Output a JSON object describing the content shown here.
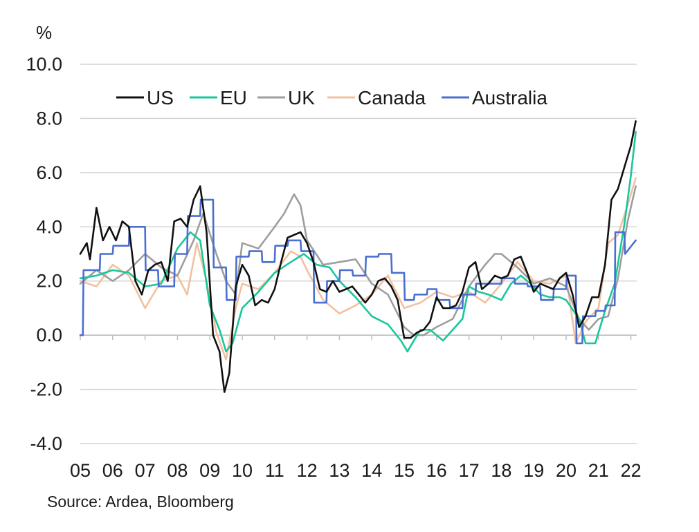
{
  "chart_data": {
    "type": "line",
    "title": "",
    "ylabel": "%",
    "xlabel": "",
    "source": "Source: Ardea, Bloomberg",
    "ylim": [
      -4.0,
      10.0
    ],
    "xlim": [
      2005.0,
      2022.2
    ],
    "yticks": [
      "10.0",
      "8.0",
      "6.0",
      "4.0",
      "2.0",
      "0.0",
      "-2.0",
      "-4.0"
    ],
    "ytick_values": [
      10,
      8,
      6,
      4,
      2,
      0,
      -2,
      -4
    ],
    "xticks": [
      "05",
      "06",
      "07",
      "08",
      "09",
      "10",
      "11",
      "12",
      "13",
      "14",
      "15",
      "16",
      "17",
      "18",
      "19",
      "20",
      "21",
      "22"
    ],
    "grid": true,
    "legend_position": "top",
    "series": [
      {
        "name": "US",
        "color": "#111111",
        "x": [
          2005.0,
          2005.2,
          2005.3,
          2005.5,
          2005.7,
          2005.9,
          2006.1,
          2006.3,
          2006.5,
          2006.7,
          2006.9,
          2007.1,
          2007.3,
          2007.5,
          2007.7,
          2007.9,
          2008.1,
          2008.3,
          2008.5,
          2008.7,
          2008.9,
          2009.1,
          2009.3,
          2009.45,
          2009.6,
          2009.8,
          2010.0,
          2010.2,
          2010.4,
          2010.6,
          2010.8,
          2011.0,
          2011.2,
          2011.4,
          2011.6,
          2011.8,
          2012.0,
          2012.2,
          2012.4,
          2012.6,
          2012.8,
          2013.0,
          2013.2,
          2013.4,
          2013.6,
          2013.8,
          2014.0,
          2014.2,
          2014.4,
          2014.6,
          2014.8,
          2015.0,
          2015.2,
          2015.4,
          2015.6,
          2015.8,
          2016.0,
          2016.2,
          2016.4,
          2016.6,
          2016.8,
          2017.0,
          2017.2,
          2017.4,
          2017.6,
          2017.8,
          2018.0,
          2018.2,
          2018.4,
          2018.6,
          2018.8,
          2019.0,
          2019.2,
          2019.4,
          2019.6,
          2019.8,
          2020.0,
          2020.2,
          2020.4,
          2020.6,
          2020.8,
          2021.0,
          2021.2,
          2021.4,
          2021.6,
          2021.8,
          2022.0,
          2022.15
        ],
        "values": [
          3.0,
          3.4,
          2.8,
          4.7,
          3.5,
          4.0,
          3.5,
          4.2,
          4.0,
          2.0,
          1.5,
          2.4,
          2.6,
          2.7,
          2.0,
          4.2,
          4.3,
          4.0,
          5.0,
          5.5,
          3.8,
          0.0,
          -0.6,
          -2.1,
          -1.4,
          1.8,
          2.6,
          2.2,
          1.1,
          1.3,
          1.2,
          1.7,
          2.7,
          3.6,
          3.7,
          3.8,
          3.4,
          2.7,
          1.7,
          1.6,
          2.0,
          1.6,
          1.7,
          1.8,
          1.5,
          1.2,
          1.5,
          2.0,
          2.1,
          1.8,
          1.3,
          -0.1,
          -0.1,
          0.1,
          0.2,
          0.5,
          1.4,
          1.0,
          1.0,
          1.1,
          1.6,
          2.5,
          2.7,
          1.7,
          1.9,
          2.2,
          2.1,
          2.2,
          2.8,
          2.9,
          2.3,
          1.6,
          1.9,
          1.8,
          1.7,
          2.1,
          2.3,
          1.5,
          0.3,
          0.7,
          1.4,
          1.4,
          2.6,
          5.0,
          5.4,
          6.2,
          7.0,
          7.9
        ]
      },
      {
        "name": "EU",
        "color": "#19c79b",
        "x": [
          2005.0,
          2005.5,
          2006.0,
          2006.5,
          2007.0,
          2007.5,
          2008.0,
          2008.4,
          2008.7,
          2009.0,
          2009.3,
          2009.5,
          2009.7,
          2010.0,
          2010.5,
          2011.0,
          2011.5,
          2011.9,
          2012.3,
          2012.7,
          2013.0,
          2013.5,
          2014.0,
          2014.5,
          2014.9,
          2015.1,
          2015.5,
          2015.8,
          2016.2,
          2016.5,
          2016.8,
          2017.0,
          2017.3,
          2017.6,
          2018.0,
          2018.3,
          2018.6,
          2018.9,
          2019.2,
          2019.5,
          2019.8,
          2020.0,
          2020.4,
          2020.6,
          2020.9,
          2021.2,
          2021.5,
          2021.8,
          2022.0,
          2022.15
        ],
        "values": [
          2.1,
          2.2,
          2.4,
          2.3,
          1.8,
          1.9,
          3.2,
          3.8,
          3.5,
          1.1,
          0.2,
          -0.6,
          -0.3,
          1.0,
          1.6,
          2.3,
          2.7,
          3.0,
          2.6,
          2.5,
          2.0,
          1.4,
          0.7,
          0.4,
          -0.2,
          -0.6,
          0.2,
          0.2,
          -0.2,
          0.2,
          0.6,
          1.8,
          1.6,
          1.5,
          1.3,
          1.9,
          2.2,
          1.9,
          1.5,
          1.4,
          1.4,
          1.3,
          0.6,
          -0.3,
          -0.3,
          0.9,
          1.9,
          4.1,
          5.9,
          7.5
        ]
      },
      {
        "name": "UK",
        "color": "#9e9e9e",
        "x": [
          2005.0,
          2005.5,
          2006.0,
          2006.5,
          2007.0,
          2007.5,
          2008.0,
          2008.5,
          2008.8,
          2009.2,
          2009.5,
          2009.8,
          2010.0,
          2010.5,
          2011.0,
          2011.3,
          2011.6,
          2011.8,
          2012.0,
          2012.5,
          2013.0,
          2013.5,
          2014.0,
          2014.5,
          2015.0,
          2015.3,
          2015.6,
          2016.0,
          2016.5,
          2017.0,
          2017.5,
          2017.8,
          2018.0,
          2018.5,
          2019.0,
          2019.5,
          2020.0,
          2020.4,
          2020.7,
          2021.0,
          2021.3,
          2021.6,
          2021.9,
          2022.15
        ],
        "values": [
          1.9,
          2.4,
          2.0,
          2.4,
          3.0,
          2.5,
          2.2,
          3.5,
          4.5,
          3.0,
          2.0,
          1.5,
          3.4,
          3.2,
          4.0,
          4.5,
          5.2,
          4.8,
          3.5,
          2.6,
          2.7,
          2.8,
          1.9,
          1.5,
          0.3,
          0.0,
          0.0,
          0.3,
          0.6,
          1.8,
          2.6,
          3.0,
          3.0,
          2.5,
          1.9,
          2.1,
          1.8,
          0.6,
          0.2,
          0.6,
          0.7,
          2.1,
          4.2,
          5.5
        ]
      },
      {
        "name": "Canada",
        "color": "#f2c0a0",
        "x": [
          2005.0,
          2005.5,
          2006.0,
          2006.5,
          2007.0,
          2007.5,
          2008.0,
          2008.3,
          2008.6,
          2008.9,
          2009.2,
          2009.5,
          2009.8,
          2010.0,
          2010.5,
          2011.0,
          2011.5,
          2011.8,
          2012.0,
          2012.5,
          2013.0,
          2013.5,
          2014.0,
          2014.5,
          2015.0,
          2015.5,
          2016.0,
          2016.5,
          2017.0,
          2017.5,
          2018.0,
          2018.5,
          2019.0,
          2019.5,
          2020.0,
          2020.3,
          2020.6,
          2021.0,
          2021.3,
          2021.6,
          2021.9,
          2022.15
        ],
        "values": [
          2.0,
          1.8,
          2.6,
          2.2,
          1.0,
          2.0,
          2.2,
          1.5,
          3.4,
          2.0,
          0.1,
          -0.9,
          1.0,
          1.9,
          1.7,
          2.3,
          3.1,
          2.9,
          2.4,
          1.3,
          0.8,
          1.1,
          1.5,
          2.2,
          1.0,
          1.2,
          1.6,
          1.4,
          1.6,
          1.2,
          1.9,
          2.7,
          2.0,
          1.9,
          2.2,
          -0.3,
          0.5,
          1.0,
          3.4,
          3.7,
          4.8,
          5.8
        ]
      },
      {
        "name": "Australia",
        "color": "#4a6fd0",
        "x": [
          2005.0,
          2005.08,
          2005.1,
          2005.6,
          2005.62,
          2006.0,
          2006.02,
          2006.5,
          2006.52,
          2007.0,
          2007.02,
          2007.4,
          2007.42,
          2007.9,
          2007.92,
          2008.3,
          2008.32,
          2008.7,
          2008.72,
          2009.1,
          2009.12,
          2009.5,
          2009.52,
          2009.8,
          2009.82,
          2010.2,
          2010.22,
          2010.6,
          2010.62,
          2011.0,
          2011.02,
          2011.4,
          2011.42,
          2011.8,
          2011.82,
          2012.2,
          2012.22,
          2012.6,
          2012.62,
          2013.0,
          2013.02,
          2013.4,
          2013.42,
          2013.8,
          2013.82,
          2014.2,
          2014.22,
          2014.6,
          2014.62,
          2015.0,
          2015.02,
          2015.3,
          2015.32,
          2015.7,
          2015.72,
          2016.0,
          2016.02,
          2016.4,
          2016.42,
          2016.8,
          2016.82,
          2017.2,
          2017.22,
          2017.6,
          2017.62,
          2018.0,
          2018.02,
          2018.4,
          2018.42,
          2018.8,
          2018.82,
          2019.2,
          2019.22,
          2019.6,
          2019.62,
          2020.0,
          2020.02,
          2020.3,
          2020.32,
          2020.5,
          2020.52,
          2020.9,
          2020.92,
          2021.2,
          2021.22,
          2021.5,
          2021.52,
          2021.8,
          2021.82,
          2022.15
        ],
        "values": [
          0.0,
          0.0,
          2.4,
          2.4,
          3.0,
          3.0,
          3.3,
          3.3,
          4.0,
          4.0,
          2.4,
          2.4,
          1.8,
          1.8,
          3.0,
          3.0,
          4.4,
          4.4,
          5.0,
          5.0,
          2.5,
          2.5,
          1.3,
          1.3,
          2.9,
          2.9,
          3.1,
          3.1,
          2.7,
          2.7,
          3.3,
          3.3,
          3.5,
          3.5,
          3.1,
          3.1,
          1.2,
          1.2,
          2.0,
          2.0,
          2.4,
          2.4,
          2.2,
          2.2,
          2.9,
          2.9,
          3.0,
          3.0,
          2.3,
          2.3,
          1.3,
          1.3,
          1.5,
          1.5,
          1.7,
          1.7,
          1.3,
          1.3,
          1.0,
          1.0,
          1.5,
          1.5,
          1.9,
          1.9,
          1.9,
          1.9,
          2.1,
          2.1,
          1.9,
          1.9,
          1.8,
          1.8,
          1.3,
          1.3,
          1.7,
          1.7,
          2.2,
          2.2,
          -0.3,
          -0.3,
          0.7,
          0.7,
          0.9,
          0.9,
          1.1,
          1.1,
          3.8,
          3.8,
          3.0,
          3.5
        ]
      }
    ]
  }
}
